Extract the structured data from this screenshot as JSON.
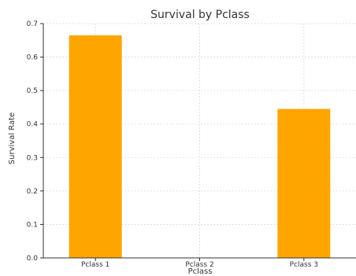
{
  "chart_data": {
    "type": "bar",
    "title": "Survival by Pclass",
    "xlabel": "Pclass",
    "ylabel": "Survival Rate",
    "categories": [
      "Pclass 1",
      "Pclass 2",
      "Pclass 3"
    ],
    "values": [
      0.665,
      0,
      0.445
    ],
    "ylim": [
      0,
      0.7
    ],
    "yticks": [
      0.0,
      0.1,
      0.2,
      0.3,
      0.4,
      0.5,
      0.6,
      0.7
    ],
    "ytick_labels": [
      "0.0",
      "0.1",
      "0.2",
      "0.3",
      "0.4",
      "0.5",
      "0.6",
      "0.7"
    ],
    "bar_color": "#ffa500",
    "grid": true,
    "legend": "none"
  }
}
